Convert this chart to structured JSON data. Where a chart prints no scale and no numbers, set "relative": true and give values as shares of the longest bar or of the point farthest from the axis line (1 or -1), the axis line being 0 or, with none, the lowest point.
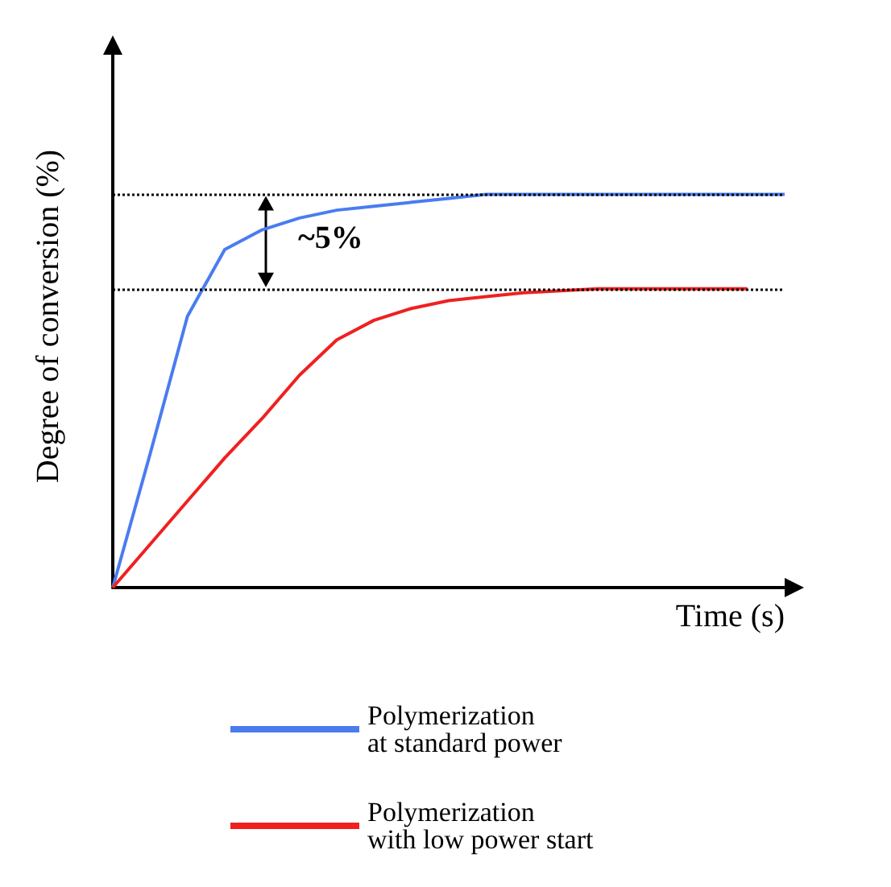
{
  "chart_data": {
    "type": "line",
    "relative": true,
    "xlabel": "Time (s)",
    "ylabel": "Degree of conversion (%)",
    "categories": [
      null,
      null,
      null,
      null,
      null,
      null,
      null,
      null,
      null,
      null,
      null,
      null,
      null,
      null,
      null,
      null,
      null,
      null,
      null
    ],
    "series": [
      {
        "name": "Polymerization\nat standard power",
        "color": "#4a7cf0",
        "values": [
          0,
          0.34,
          0.69,
          0.86,
          0.91,
          0.94,
          0.96,
          0.97,
          0.98,
          0.99,
          1,
          1,
          1,
          1,
          1,
          1,
          1,
          1,
          1
        ]
      },
      {
        "name": "Polymerization\nwith low power start",
        "color": "#f02020",
        "values": [
          0,
          0.11,
          0.22,
          0.33,
          0.43,
          0.54,
          0.63,
          0.68,
          0.71,
          0.73,
          0.74,
          0.75,
          0.755,
          0.76,
          0.76,
          0.76,
          0.76,
          0.76,
          null
        ]
      }
    ],
    "ref_lines": [
      {
        "axis": "y",
        "value": 1,
        "color": "#000000",
        "line_style": "dotted"
      },
      {
        "axis": "y",
        "value": 0.76,
        "color": "#000000",
        "line_style": "dotted"
      }
    ],
    "annotations": [
      "~5%"
    ],
    "legend": "bottom",
    "grid": false,
    "marker": "none",
    "line_style": "solid"
  }
}
